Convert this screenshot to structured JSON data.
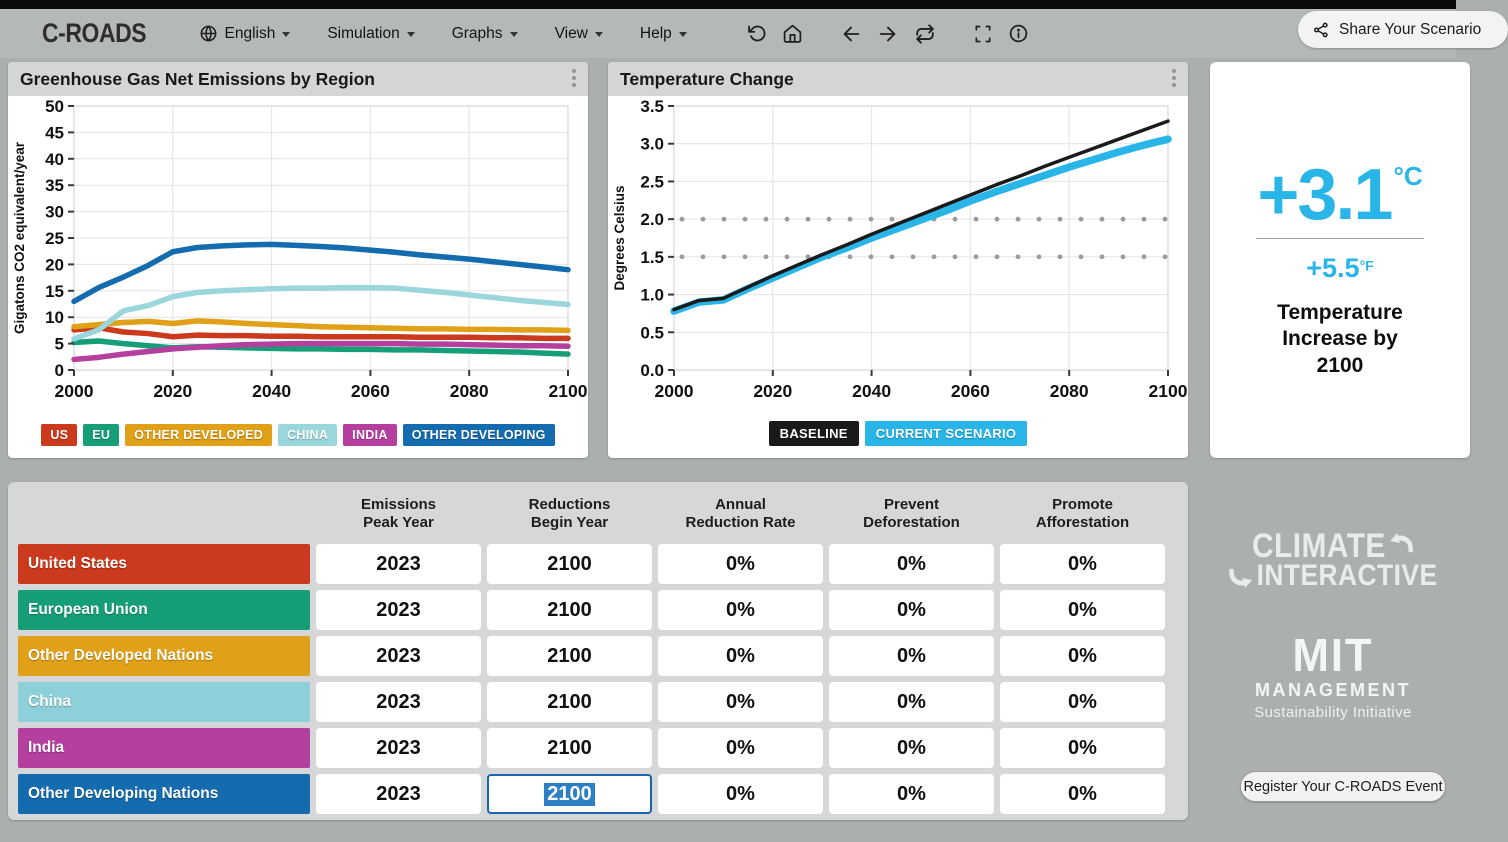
{
  "navbar": {
    "logo_text": "C-ROADS",
    "logo_stripe_colors": [
      "#2aa77b",
      "#e0512a",
      "#eba61e",
      "#2fb0c9",
      "#1e78c0",
      "#c43fa4"
    ],
    "menus": [
      "English",
      "Simulation",
      "Graphs",
      "View",
      "Help"
    ],
    "share_label": "Share Your Scenario"
  },
  "panels": {
    "emissions_title": "Greenhouse Gas Net Emissions by Region",
    "temperature_title": "Temperature Change"
  },
  "temp_card": {
    "accent": "#29b5e8",
    "primary_value": "+3.1",
    "primary_unit": "°C",
    "secondary_value": "+5.5",
    "secondary_unit": "°F",
    "caption": "Temperature Increase by 2100"
  },
  "table": {
    "headers": [
      [
        "Emissions",
        "Peak Year"
      ],
      [
        "Reductions",
        "Begin Year"
      ],
      [
        "Annual",
        "Reduction Rate"
      ],
      [
        "Prevent",
        "Deforestation"
      ],
      [
        "Promote",
        "Afforestation"
      ]
    ],
    "rows": [
      {
        "label": "United States",
        "color": "#cb3a1d",
        "values": [
          "2023",
          "2100",
          "0%",
          "0%",
          "0%"
        ]
      },
      {
        "label": "European Union",
        "color": "#169e78",
        "values": [
          "2023",
          "2100",
          "0%",
          "0%",
          "0%"
        ]
      },
      {
        "label": "Other Developed Nations",
        "color": "#e0a018",
        "values": [
          "2023",
          "2100",
          "0%",
          "0%",
          "0%"
        ]
      },
      {
        "label": "China",
        "color": "#8dd0d9",
        "values": [
          "2023",
          "2100",
          "0%",
          "0%",
          "0%"
        ]
      },
      {
        "label": "India",
        "color": "#b53f9f",
        "values": [
          "2023",
          "2100",
          "0%",
          "0%",
          "0%"
        ]
      },
      {
        "label": "Other Developing Nations",
        "color": "#146bad",
        "values": [
          "2023",
          "2100",
          "0%",
          "0%",
          "0%"
        ]
      }
    ],
    "focused_cell": {
      "row": "Other Developing Nations",
      "column": "Reductions Begin Year",
      "value": "2100",
      "state": "text-selected"
    }
  },
  "branding": {
    "climate_line1": "CLIMATE",
    "climate_line2": "INTERACTIVE",
    "mit": "MIT",
    "mit_sub": "MANAGEMENT",
    "mit_sub2": "Sustainability Initiative",
    "register_label": "Register Your C-ROADS Event"
  },
  "chart_data": [
    {
      "type": "line",
      "title": "Greenhouse Gas Net Emissions by Region",
      "xlabel": "",
      "ylabel": "Gigatons CO2 equivalent/year",
      "xlim": [
        2000,
        2100
      ],
      "ylim": [
        0,
        50
      ],
      "xticks": [
        2000,
        2020,
        2040,
        2060,
        2080,
        2100
      ],
      "yticks": [
        0,
        5,
        10,
        15,
        20,
        25,
        30,
        35,
        40,
        45,
        50
      ],
      "grid": true,
      "legend_position": "bottom",
      "x": [
        2000,
        2005,
        2010,
        2015,
        2020,
        2025,
        2030,
        2035,
        2040,
        2045,
        2050,
        2055,
        2060,
        2065,
        2070,
        2075,
        2080,
        2085,
        2090,
        2095,
        2100
      ],
      "series": [
        {
          "name": "US",
          "color": "#cb3a1d",
          "values": [
            7.6,
            8.0,
            7.2,
            6.9,
            6.3,
            6.6,
            6.5,
            6.5,
            6.4,
            6.4,
            6.3,
            6.3,
            6.3,
            6.3,
            6.2,
            6.2,
            6.2,
            6.1,
            6.1,
            6.0,
            6.0
          ]
        },
        {
          "name": "EU",
          "color": "#169e78",
          "values": [
            5.2,
            5.5,
            5.0,
            4.6,
            4.2,
            4.4,
            4.3,
            4.2,
            4.1,
            4.0,
            4.0,
            3.9,
            3.9,
            3.8,
            3.8,
            3.7,
            3.6,
            3.5,
            3.4,
            3.2,
            3.0
          ]
        },
        {
          "name": "OTHER DEVELOPED",
          "color": "#e0a018",
          "values": [
            8.2,
            8.6,
            9.0,
            9.2,
            8.8,
            9.3,
            9.1,
            8.8,
            8.6,
            8.4,
            8.2,
            8.1,
            8.0,
            7.9,
            7.8,
            7.8,
            7.7,
            7.7,
            7.6,
            7.6,
            7.5
          ]
        },
        {
          "name": "CHINA",
          "color": "#9cd6dd",
          "values": [
            5.9,
            7.6,
            11.2,
            12.2,
            13.9,
            14.7,
            15.0,
            15.2,
            15.4,
            15.5,
            15.5,
            15.6,
            15.6,
            15.5,
            15.1,
            14.7,
            14.2,
            13.7,
            13.2,
            12.8,
            12.4
          ]
        },
        {
          "name": "INDIA",
          "color": "#b53f9f",
          "values": [
            2.0,
            2.4,
            3.0,
            3.5,
            4.0,
            4.3,
            4.6,
            4.8,
            4.9,
            5.0,
            5.0,
            5.0,
            5.0,
            5.0,
            4.9,
            4.9,
            4.8,
            4.7,
            4.6,
            4.6,
            4.5
          ]
        },
        {
          "name": "OTHER DEVELOPING",
          "color": "#146bad",
          "values": [
            13.0,
            15.6,
            17.6,
            19.8,
            22.4,
            23.2,
            23.5,
            23.7,
            23.8,
            23.6,
            23.4,
            23.1,
            22.7,
            22.3,
            21.8,
            21.4,
            21.0,
            20.5,
            20.0,
            19.5,
            19.0
          ]
        }
      ]
    },
    {
      "type": "line",
      "title": "Temperature Change",
      "xlabel": "",
      "ylabel": "Degrees Celsius",
      "xlim": [
        2000,
        2100
      ],
      "ylim": [
        0,
        3.5
      ],
      "xticks": [
        2000,
        2020,
        2040,
        2060,
        2080,
        2100
      ],
      "yticks": [
        0,
        0.5,
        1,
        1.5,
        2,
        2.5,
        3,
        3.5
      ],
      "ytick_labels": [
        "0.0",
        "0.5",
        "1.0",
        "1.5",
        "2.0",
        "2.5",
        "3.0",
        "3.5"
      ],
      "ref_lines": [
        1.5,
        2.0
      ],
      "grid": true,
      "legend_position": "bottom",
      "x": [
        2000,
        2005,
        2010,
        2015,
        2020,
        2025,
        2030,
        2035,
        2040,
        2045,
        2050,
        2055,
        2060,
        2065,
        2070,
        2075,
        2080,
        2085,
        2090,
        2095,
        2100
      ],
      "series": [
        {
          "name": "CURRENT SCENARIO",
          "color": "#29b5e8",
          "width": 7.5,
          "values": [
            0.78,
            0.9,
            0.93,
            1.08,
            1.22,
            1.36,
            1.5,
            1.62,
            1.75,
            1.87,
            1.99,
            2.11,
            2.24,
            2.36,
            2.47,
            2.58,
            2.69,
            2.79,
            2.89,
            2.98,
            3.06
          ]
        },
        {
          "name": "BASELINE",
          "color": "#1a1a1a",
          "width": 3.5,
          "values": [
            0.8,
            0.92,
            0.95,
            1.1,
            1.25,
            1.39,
            1.53,
            1.66,
            1.8,
            1.93,
            2.06,
            2.19,
            2.32,
            2.45,
            2.57,
            2.7,
            2.82,
            2.94,
            3.06,
            3.18,
            3.3
          ]
        }
      ]
    }
  ]
}
